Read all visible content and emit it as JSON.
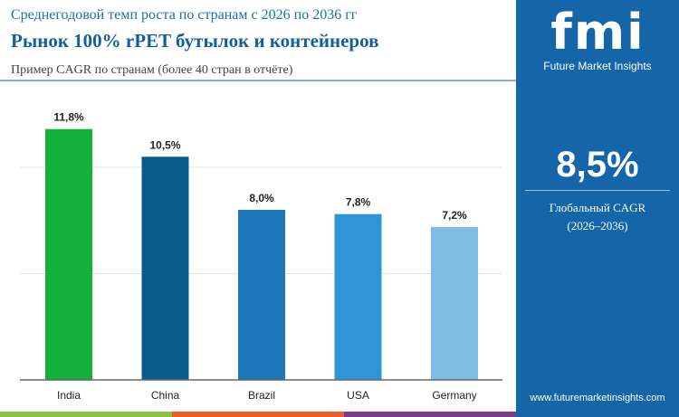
{
  "header": {
    "subtitle": "Среднегодовой темп роста по странам с 2026 по 2036 гг",
    "title": "Рынок 100% rPET бутылок и контейнеров",
    "note": "Пример CAGR по странам (более 40 стран в отчёте)"
  },
  "panel": {
    "logo": "fmi",
    "brand": "Future Market Insights",
    "global_value": "8,5%",
    "global_label": "Глобальный CAGR",
    "global_period": "(2026–2036)",
    "url": "www.futuremarketinsights.com",
    "color": "#1566a8"
  },
  "chart_data": {
    "type": "bar",
    "categories": [
      "India",
      "China",
      "Brazil",
      "USA",
      "Germany"
    ],
    "values": [
      11.8,
      10.5,
      8.0,
      7.8,
      7.2
    ],
    "labels": [
      "11,8%",
      "10,5%",
      "8,0%",
      "7,8%",
      "7,2%"
    ],
    "colors": [
      "#14b13a",
      "#0b5a8c",
      "#1c78b8",
      "#2f95d6",
      "#7fbce3"
    ],
    "grid": true,
    "gridlines": [
      5,
      10
    ],
    "ylim": [
      0,
      12
    ]
  },
  "stripes": [
    "#8bc34a",
    "#e8612c",
    "#7b3a8c"
  ]
}
